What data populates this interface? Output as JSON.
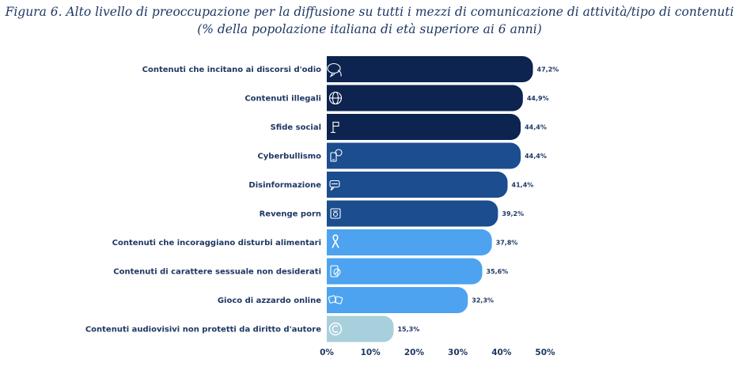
{
  "title": {
    "line1": "Figura 6. Alto livello di preoccupazione per la diffusione su tutti i mezzi di comunicazione di attività/tipo di contenuti",
    "line2": "(% della popolazione italiana di età superiore ai 6 anni)"
  },
  "chart_data": {
    "type": "bar",
    "orientation": "horizontal",
    "categories": [
      "Contenuti che incitano ai discorsi d'odio",
      "Contenuti illegali",
      "Sfide social",
      "Cyberbullismo",
      "Disinformazione",
      "Revenge porn",
      "Contenuti che incoraggiano disturbi alimentari",
      "Contenuti di carattere sessuale non desiderati",
      "Gioco di azzardo online",
      "Contenuti audiovisivi non protetti da diritto d'autore"
    ],
    "values": [
      47.2,
      44.9,
      44.4,
      44.4,
      41.4,
      39.2,
      37.8,
      35.6,
      32.3,
      15.3
    ],
    "value_labels": [
      "47,2%",
      "44,9%",
      "44,4%",
      "44,4%",
      "41,4%",
      "39,2%",
      "37,8%",
      "35,6%",
      "32,3%",
      "15,3%"
    ],
    "icons": [
      "hate-speech-icon",
      "illegal-content-icon",
      "social-challenge-icon",
      "cyberbullying-icon",
      "fake-news-icon",
      "revenge-porn-icon",
      "eating-disorder-ribbon-icon",
      "unwanted-sexual-content-icon",
      "gambling-icon",
      "copyright-icon"
    ],
    "colors": [
      "#0d2350",
      "#0d2350",
      "#0d2350",
      "#1b4d8f",
      "#1b4d8f",
      "#1b4d8f",
      "#4da3f0",
      "#4da3f0",
      "#4da3f0",
      "#a8cfdc"
    ],
    "xlim": [
      0,
      50
    ],
    "xticks": [
      "0%",
      "10%",
      "20%",
      "30%",
      "40%",
      "50%"
    ],
    "grid": false,
    "legend": "none"
  }
}
